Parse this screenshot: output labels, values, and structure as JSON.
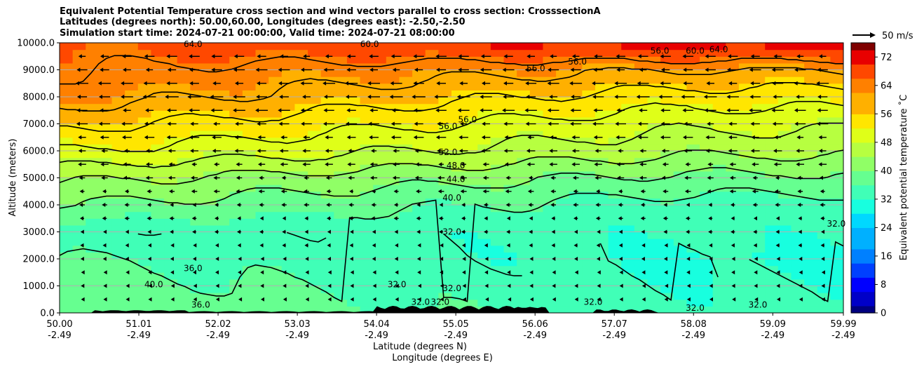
{
  "header": {
    "title_line1": "Equivalent Potential Temperature cross section and wind vectors parallel to cross section: CrosssectionA",
    "title_line2": "Latitudes (degrees north): 50.00,60.00, Longitudes (degrees east): -2.50,-2.50",
    "title_line3": "Simulation start time: 2024-07-21 00:00:00, Valid time: 2024-07-21 08:00:00"
  },
  "chart_data": {
    "type": "contourf-cross-section",
    "xlabel_lat": "Latitude (degrees N)",
    "xlabel_lon": "Longitude (degrees E)",
    "ylabel": "Altitude (meters)",
    "xlim": [
      50.0,
      59.99
    ],
    "ylim": [
      0,
      10000
    ],
    "x_ticks": [
      {
        "lat": "50.00",
        "lon": "-2.49"
      },
      {
        "lat": "51.01",
        "lon": "-2.49"
      },
      {
        "lat": "52.02",
        "lon": "-2.49"
      },
      {
        "lat": "53.03",
        "lon": "-2.49"
      },
      {
        "lat": "54.04",
        "lon": "-2.49"
      },
      {
        "lat": "55.05",
        "lon": "-2.49"
      },
      {
        "lat": "56.06",
        "lon": "-2.49"
      },
      {
        "lat": "57.07",
        "lon": "-2.49"
      },
      {
        "lat": "58.08",
        "lon": "-2.49"
      },
      {
        "lat": "59.09",
        "lon": "-2.49"
      },
      {
        "lat": "59.99",
        "lon": "-2.49"
      }
    ],
    "y_ticks": [
      "0.0",
      "1000.0",
      "2000.0",
      "3000.0",
      "4000.0",
      "5000.0",
      "6000.0",
      "7000.0",
      "8000.0",
      "9000.0",
      "10000.0"
    ],
    "grid": "horizontal",
    "colorbar": {
      "label": "Equivalent potential temperature ˚C",
      "min": 0,
      "max": 76,
      "step": 2,
      "ticks": [
        "0",
        "8",
        "16",
        "24",
        "32",
        "40",
        "48",
        "56",
        "64",
        "72"
      ],
      "colors": [
        "#00007f",
        "#0000c8",
        "#0000ff",
        "#0040ff",
        "#0080ff",
        "#00b0ff",
        "#00d8ff",
        "#18ffdf",
        "#40ffb7",
        "#66ff90",
        "#90ff66",
        "#b7ff40",
        "#dfff18",
        "#ffe600",
        "#ffb000",
        "#ff8000",
        "#ff4800",
        "#e80000",
        "#7f0000"
      ]
    },
    "theta_e_profile_left": [
      {
        "alt": 0,
        "value": 40
      },
      {
        "alt": 2000,
        "value": 36
      },
      {
        "alt": 3000,
        "value": 33
      },
      {
        "alt": 4000,
        "value": 40
      },
      {
        "alt": 5000,
        "value": 45
      },
      {
        "alt": 6000,
        "value": 52
      },
      {
        "alt": 7000,
        "value": 57
      },
      {
        "alt": 8000,
        "value": 62
      },
      {
        "alt": 10000,
        "value": 66
      }
    ],
    "theta_e_profile_right": [
      {
        "alt": 0,
        "value": 33
      },
      {
        "alt": 2000,
        "value": 31
      },
      {
        "alt": 4000,
        "value": 34
      },
      {
        "alt": 5000,
        "value": 39
      },
      {
        "alt": 6000,
        "value": 45
      },
      {
        "alt": 7000,
        "value": 49
      },
      {
        "alt": 8000,
        "value": 54
      },
      {
        "alt": 9000,
        "value": 60
      },
      {
        "alt": 10000,
        "value": 72
      }
    ],
    "contour_levels": [
      32,
      36,
      40,
      44,
      48,
      52,
      56,
      60,
      64
    ],
    "contour_labels": [
      {
        "text": "64.0",
        "lat": 51.7,
        "alt": 9850
      },
      {
        "text": "60.0",
        "lat": 53.95,
        "alt": 9850
      },
      {
        "text": "56.0",
        "lat": 56.07,
        "alt": 8950
      },
      {
        "text": "56.0",
        "lat": 56.6,
        "alt": 9200
      },
      {
        "text": "56.0",
        "lat": 57.65,
        "alt": 9600
      },
      {
        "text": "60.0",
        "lat": 58.1,
        "alt": 9600
      },
      {
        "text": "64.0",
        "lat": 58.4,
        "alt": 9650
      },
      {
        "text": "56.0",
        "lat": 54.95,
        "alt": 6800
      },
      {
        "text": "56.0",
        "lat": 55.2,
        "alt": 7050
      },
      {
        "text": "52.0",
        "lat": 54.95,
        "alt": 5850
      },
      {
        "text": "48.0",
        "lat": 55.05,
        "alt": 5350
      },
      {
        "text": "44.0",
        "lat": 55.05,
        "alt": 4850
      },
      {
        "text": "40.0",
        "lat": 55.0,
        "alt": 4150
      },
      {
        "text": "32.0",
        "lat": 55.0,
        "alt": 2900
      },
      {
        "text": "36.0",
        "lat": 51.7,
        "alt": 1550
      },
      {
        "text": "40.0",
        "lat": 51.2,
        "alt": 950
      },
      {
        "text": "36.0",
        "lat": 51.8,
        "alt": 200
      },
      {
        "text": "32.0",
        "lat": 54.3,
        "alt": 950
      },
      {
        "text": "32.0",
        "lat": 55.0,
        "alt": 800
      },
      {
        "text": "32.0",
        "lat": 54.6,
        "alt": 300
      },
      {
        "text": "32.0",
        "lat": 54.85,
        "alt": 300
      },
      {
        "text": "32.0",
        "lat": 56.8,
        "alt": 300
      },
      {
        "text": "32.0",
        "lat": 58.1,
        "alt": 80
      },
      {
        "text": "32.0",
        "lat": 58.9,
        "alt": 200
      },
      {
        "text": "32.0",
        "lat": 59.9,
        "alt": 3200
      }
    ],
    "wind_speed_profile": [
      {
        "alt": 0,
        "value": 4
      },
      {
        "alt": 2000,
        "value": 7
      },
      {
        "alt": 4000,
        "value": 12
      },
      {
        "alt": 6000,
        "value": 20
      },
      {
        "alt": 8000,
        "value": 30
      },
      {
        "alt": 10000,
        "value": 22
      }
    ],
    "quiver_key": {
      "label": "50 m/s",
      "value": 50
    }
  }
}
